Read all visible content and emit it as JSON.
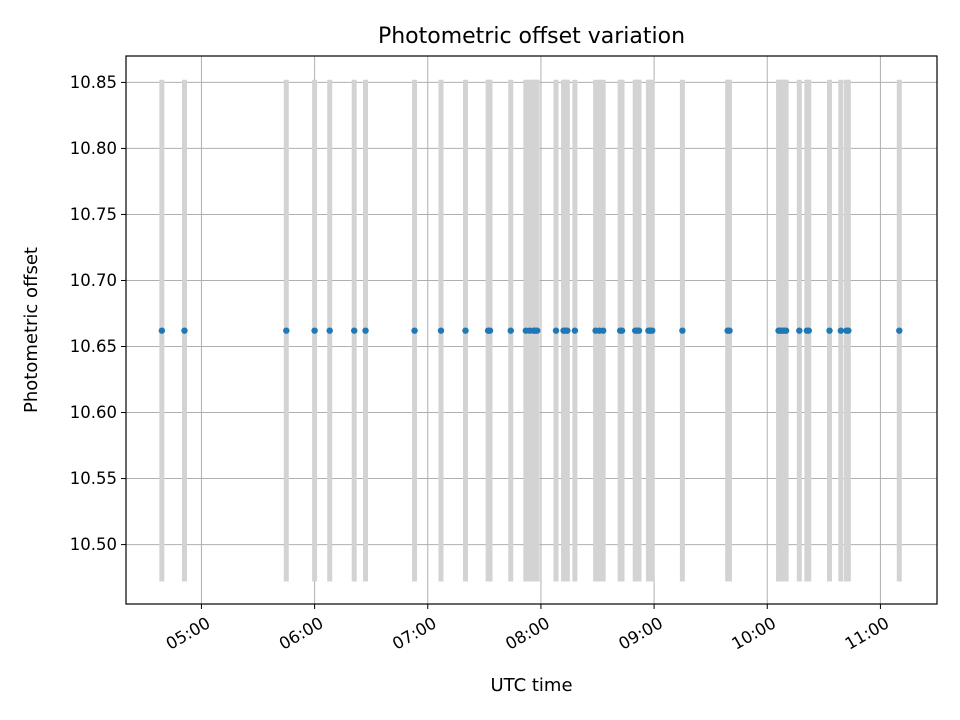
{
  "chart_data": {
    "type": "scatter",
    "title": "Photometric offset variation",
    "xlabel": "UTC time",
    "ylabel": "Photometric offset",
    "xlim": [
      "04:20",
      "11:30"
    ],
    "ylim": [
      10.455,
      10.87
    ],
    "grid": true,
    "x_ticks": [
      "05:00",
      "06:00",
      "07:00",
      "08:00",
      "09:00",
      "10:00",
      "11:00"
    ],
    "y_ticks": [
      "10.50",
      "10.55",
      "10.60",
      "10.65",
      "10.70",
      "10.75",
      "10.80",
      "10.85"
    ],
    "series": [
      {
        "x": [
          "04:39",
          "04:51",
          "05:45",
          "06:00",
          "06:08",
          "06:21",
          "06:27",
          "06:53",
          "07:07",
          "07:20",
          "07:32",
          "07:33",
          "07:44",
          "07:52",
          "07:54",
          "07:56",
          "07:57",
          "07:58",
          "08:08",
          "08:12",
          "08:13",
          "08:14",
          "08:18",
          "08:29",
          "08:31",
          "08:33",
          "08:42",
          "08:43",
          "08:50",
          "08:51",
          "08:52",
          "08:57",
          "08:58",
          "08:59",
          "09:15",
          "09:39",
          "09:40",
          "10:06",
          "10:07",
          "10:08",
          "10:09",
          "10:10",
          "10:17",
          "10:21",
          "10:22",
          "10:33",
          "10:39",
          "10:42",
          "10:43",
          "11:10"
        ],
        "y": [
          10.662,
          10.662,
          10.662,
          10.662,
          10.662,
          10.662,
          10.662,
          10.662,
          10.662,
          10.662,
          10.662,
          10.662,
          10.662,
          10.662,
          10.662,
          10.662,
          10.662,
          10.662,
          10.662,
          10.662,
          10.662,
          10.662,
          10.662,
          10.662,
          10.662,
          10.662,
          10.662,
          10.662,
          10.662,
          10.662,
          10.662,
          10.662,
          10.662,
          10.662,
          10.662,
          10.662,
          10.662,
          10.662,
          10.662,
          10.662,
          10.662,
          10.662,
          10.662,
          10.662,
          10.662,
          10.662,
          10.662,
          10.662,
          10.662,
          10.662
        ],
        "error_low": 10.472,
        "error_high": 10.852
      }
    ],
    "colors": {
      "points": "#1f77b4",
      "error_bars": "#d3d3d3",
      "grid": "#b0b0b0"
    }
  }
}
